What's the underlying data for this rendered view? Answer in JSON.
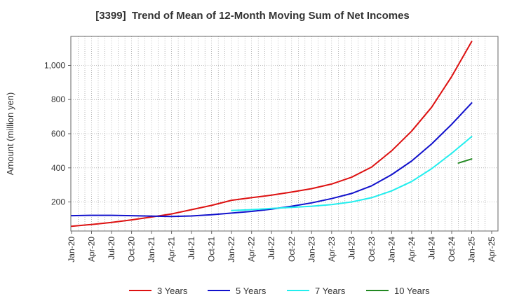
{
  "chart_data": {
    "type": "line",
    "title": "[3399]  Trend of Mean of 12-Month Moving Sum of Net Incomes",
    "ylabel": "Amount (million yen)",
    "xlabel": "",
    "ylim": [
      30,
      1170
    ],
    "yticks": [
      200,
      400,
      600,
      800,
      1000
    ],
    "ytick_labels": [
      "200",
      "400",
      "600",
      "800",
      "1,000"
    ],
    "xticks": [
      "Jan-20",
      "Apr-20",
      "Jul-20",
      "Oct-20",
      "Jan-21",
      "Apr-21",
      "Jul-21",
      "Oct-21",
      "Jan-22",
      "Apr-22",
      "Jul-22",
      "Oct-22",
      "Jan-23",
      "Apr-23",
      "Jul-23",
      "Oct-23",
      "Jan-24",
      "Apr-24",
      "Jul-24",
      "Oct-24",
      "Jan-25",
      "Apr-25"
    ],
    "x_range": [
      "Jan-20",
      "Apr-25"
    ],
    "grid": true,
    "legend_position": "bottom",
    "series": [
      {
        "name": "3 Years",
        "color": "#dd1111",
        "points": [
          [
            "Jan-20",
            58
          ],
          [
            "Apr-20",
            68
          ],
          [
            "Jul-20",
            80
          ],
          [
            "Oct-20",
            95
          ],
          [
            "Jan-21",
            112
          ],
          [
            "Apr-21",
            130
          ],
          [
            "Jul-21",
            155
          ],
          [
            "Oct-21",
            180
          ],
          [
            "Jan-22",
            210
          ],
          [
            "Apr-22",
            225
          ],
          [
            "Jul-22",
            240
          ],
          [
            "Oct-22",
            258
          ],
          [
            "Jan-23",
            278
          ],
          [
            "Apr-23",
            305
          ],
          [
            "Jul-23",
            345
          ],
          [
            "Oct-23",
            405
          ],
          [
            "Jan-24",
            500
          ],
          [
            "Apr-24",
            615
          ],
          [
            "Jul-24",
            755
          ],
          [
            "Oct-24",
            935
          ],
          [
            "Jan-25",
            1140
          ]
        ]
      },
      {
        "name": "5 Years",
        "color": "#1111cc",
        "points": [
          [
            "Jan-20",
            120
          ],
          [
            "Apr-20",
            122
          ],
          [
            "Jul-20",
            122
          ],
          [
            "Oct-20",
            120
          ],
          [
            "Jan-21",
            117
          ],
          [
            "Apr-21",
            115
          ],
          [
            "Jul-21",
            118
          ],
          [
            "Oct-21",
            125
          ],
          [
            "Jan-22",
            135
          ],
          [
            "Apr-22",
            145
          ],
          [
            "Jul-22",
            158
          ],
          [
            "Oct-22",
            175
          ],
          [
            "Jan-23",
            195
          ],
          [
            "Apr-23",
            220
          ],
          [
            "Jul-23",
            250
          ],
          [
            "Oct-23",
            295
          ],
          [
            "Jan-24",
            360
          ],
          [
            "Apr-24",
            440
          ],
          [
            "Jul-24",
            540
          ],
          [
            "Oct-24",
            655
          ],
          [
            "Jan-25",
            780
          ]
        ]
      },
      {
        "name": "7 Years",
        "color": "#22eeee",
        "points": [
          [
            "Jan-22",
            150
          ],
          [
            "Apr-22",
            155
          ],
          [
            "Jul-22",
            162
          ],
          [
            "Oct-22",
            168
          ],
          [
            "Jan-23",
            175
          ],
          [
            "Apr-23",
            185
          ],
          [
            "Jul-23",
            200
          ],
          [
            "Oct-23",
            225
          ],
          [
            "Jan-24",
            265
          ],
          [
            "Apr-24",
            320
          ],
          [
            "Jul-24",
            395
          ],
          [
            "Oct-24",
            485
          ],
          [
            "Jan-25",
            583
          ]
        ]
      },
      {
        "name": "10 Years",
        "color": "#228822",
        "points": [
          [
            "Nov-24",
            428
          ],
          [
            "Jan-25",
            452
          ]
        ]
      }
    ]
  }
}
